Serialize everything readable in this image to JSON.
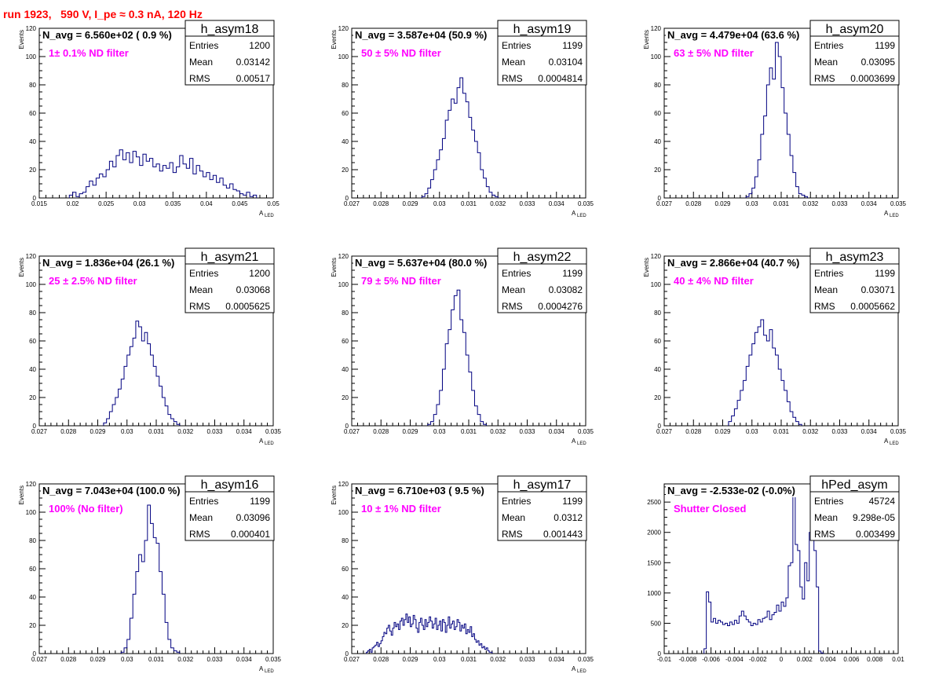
{
  "run_title": "run 1923,   590 V, I_pe ≈ 0.3 nA, 120 Hz",
  "stat_labels": {
    "entries": "Entries",
    "mean": "Mean",
    "rms": "RMS"
  },
  "chart_data": [
    {
      "type": "bar",
      "name": "h_asym18",
      "navg_text": "N_avg = 6.560e+02 ( 0.9 %)",
      "filter_text": "1± 0.1% ND filter",
      "entries": "1200",
      "mean": "0.03142",
      "rms": "0.00517",
      "ylabel": "Events",
      "xlabel": "A",
      "xlabel_sub": "LED",
      "xlim": [
        0.015,
        0.05
      ],
      "ylim": [
        0,
        120
      ],
      "xticks": [
        "0.015",
        "0.02",
        "0.025",
        "0.03",
        "0.035",
        "0.04",
        "0.045",
        "0.05"
      ],
      "yticks": [
        "0",
        "20",
        "40",
        "60",
        "80",
        "100",
        "120"
      ],
      "bins": {
        "start": 0.0195,
        "width": 0.0005,
        "values": [
          2,
          4,
          1,
          3,
          4,
          8,
          12,
          9,
          14,
          17,
          15,
          20,
          26,
          22,
          30,
          34,
          27,
          32,
          25,
          33,
          29,
          23,
          31,
          26,
          28,
          22,
          24,
          19,
          23,
          21,
          25,
          18,
          22,
          30,
          24,
          21,
          28,
          17,
          23,
          19,
          15,
          18,
          13,
          16,
          11,
          14,
          9,
          7,
          10,
          6,
          5,
          3,
          2,
          4,
          1,
          2
        ]
      }
    },
    {
      "type": "bar",
      "name": "h_asym19",
      "navg_text": "N_avg = 3.587e+04 (50.9 %)",
      "filter_text": "50 ± 5% ND filter",
      "entries": "1199",
      "mean": "0.03104",
      "rms": "0.0004814",
      "ylabel": "Events",
      "xlabel": "A",
      "xlabel_sub": "LED",
      "xlim": [
        0.027,
        0.035
      ],
      "ylim": [
        0,
        120
      ],
      "xticks": [
        "0.027",
        "0.028",
        "0.029",
        "0.03",
        "0.031",
        "0.032",
        "0.033",
        "0.034",
        "0.035"
      ],
      "yticks": [
        "0",
        "20",
        "40",
        "60",
        "80",
        "100",
        "120"
      ],
      "bins": {
        "start": 0.0294,
        "width": 0.0001,
        "values": [
          1,
          3,
          7,
          13,
          20,
          27,
          34,
          42,
          55,
          62,
          70,
          67,
          78,
          85,
          74,
          68,
          57,
          48,
          40,
          32,
          20,
          14,
          8,
          4,
          2,
          1
        ]
      }
    },
    {
      "type": "bar",
      "name": "h_asym20",
      "navg_text": "N_avg = 4.479e+04 (63.6 %)",
      "filter_text": "63 ± 5% ND filter",
      "entries": "1199",
      "mean": "0.03095",
      "rms": "0.0003699",
      "ylabel": "Events",
      "xlabel": "A",
      "xlabel_sub": "LED",
      "xlim": [
        0.027,
        0.035
      ],
      "ylim": [
        0,
        120
      ],
      "xticks": [
        "0.027",
        "0.028",
        "0.029",
        "0.03",
        "0.031",
        "0.032",
        "0.033",
        "0.034",
        "0.035"
      ],
      "yticks": [
        "0",
        "20",
        "40",
        "60",
        "80",
        "100",
        "120"
      ],
      "bins": {
        "start": 0.0298,
        "width": 0.0001,
        "values": [
          1,
          3,
          7,
          15,
          27,
          45,
          58,
          80,
          92,
          84,
          110,
          100,
          78,
          60,
          45,
          30,
          18,
          8,
          3,
          2,
          1
        ]
      }
    },
    {
      "type": "bar",
      "name": "h_asym21",
      "navg_text": "N_avg = 1.836e+04 (26.1 %)",
      "filter_text": "25 ± 2.5% ND filter",
      "entries": "1200",
      "mean": "0.03068",
      "rms": "0.0005625",
      "ylabel": "Events",
      "xlabel": "A",
      "xlabel_sub": "LED",
      "xlim": [
        0.027,
        0.035
      ],
      "ylim": [
        0,
        120
      ],
      "xticks": [
        "0.027",
        "0.028",
        "0.029",
        "0.03",
        "0.031",
        "0.032",
        "0.033",
        "0.034",
        "0.035"
      ],
      "yticks": [
        "0",
        "20",
        "40",
        "60",
        "80",
        "100",
        "120"
      ],
      "bins": {
        "start": 0.0292,
        "width": 0.0001,
        "values": [
          2,
          5,
          10,
          15,
          20,
          26,
          33,
          42,
          50,
          56,
          62,
          74,
          70,
          60,
          66,
          58,
          50,
          42,
          35,
          28,
          20,
          14,
          8,
          5,
          3,
          1
        ]
      }
    },
    {
      "type": "bar",
      "name": "h_asym22",
      "navg_text": "N_avg = 5.637e+04 (80.0 %)",
      "filter_text": "79 ± 5% ND filter",
      "entries": "1199",
      "mean": "0.03082",
      "rms": "0.0004276",
      "ylabel": "Events",
      "xlabel": "A",
      "xlabel_sub": "LED",
      "xlim": [
        0.027,
        0.035
      ],
      "ylim": [
        0,
        120
      ],
      "xticks": [
        "0.027",
        "0.028",
        "0.029",
        "0.03",
        "0.031",
        "0.032",
        "0.033",
        "0.034",
        "0.035"
      ],
      "yticks": [
        "0",
        "20",
        "40",
        "60",
        "80",
        "100",
        "120"
      ],
      "bins": {
        "start": 0.0296,
        "width": 0.0001,
        "values": [
          1,
          3,
          8,
          15,
          25,
          40,
          58,
          68,
          82,
          92,
          96,
          75,
          66,
          50,
          38,
          25,
          14,
          8,
          3,
          1
        ]
      }
    },
    {
      "type": "bar",
      "name": "h_asym23",
      "navg_text": "N_avg = 2.866e+04 (40.7 %)",
      "filter_text": "40 ± 4% ND filter",
      "entries": "1199",
      "mean": "0.03071",
      "rms": "0.0005662",
      "ylabel": "Events",
      "xlabel": "A",
      "xlabel_sub": "LED",
      "xlim": [
        0.027,
        0.035
      ],
      "ylim": [
        0,
        120
      ],
      "xticks": [
        "0.027",
        "0.028",
        "0.029",
        "0.03",
        "0.031",
        "0.032",
        "0.033",
        "0.034",
        "0.035"
      ],
      "yticks": [
        "0",
        "20",
        "40",
        "60",
        "80",
        "100",
        "120"
      ],
      "bins": {
        "start": 0.0292,
        "width": 0.0001,
        "values": [
          3,
          7,
          12,
          18,
          25,
          32,
          42,
          50,
          58,
          66,
          70,
          75,
          64,
          60,
          68,
          55,
          50,
          40,
          32,
          25,
          17,
          10,
          6,
          3,
          1
        ]
      }
    },
    {
      "type": "bar",
      "name": "h_asym16",
      "navg_text": "N_avg = 7.043e+04 (100.0 %)",
      "filter_text": "100% (No filter)",
      "entries": "1199",
      "mean": "0.03096",
      "rms": "0.000401",
      "ylabel": "Events",
      "xlabel": "A",
      "xlabel_sub": "LED",
      "xlim": [
        0.027,
        0.035
      ],
      "ylim": [
        0,
        120
      ],
      "xticks": [
        "0.027",
        "0.028",
        "0.029",
        "0.03",
        "0.031",
        "0.032",
        "0.033",
        "0.034",
        "0.035"
      ],
      "yticks": [
        "0",
        "20",
        "40",
        "60",
        "80",
        "100",
        "120"
      ],
      "bins": {
        "start": 0.0298,
        "width": 0.0001,
        "values": [
          1,
          4,
          10,
          25,
          42,
          58,
          70,
          65,
          80,
          105,
          92,
          82,
          78,
          58,
          42,
          22,
          10,
          4,
          2,
          1
        ]
      }
    },
    {
      "type": "bar",
      "name": "h_asym17",
      "navg_text": "N_avg = 6.710e+03 ( 9.5 %)",
      "filter_text": "10 ± 1% ND filter",
      "entries": "1199",
      "mean": "0.0312",
      "rms": "0.001443",
      "ylabel": "Events",
      "xlabel": "A",
      "xlabel_sub": "LED",
      "xlim": [
        0.027,
        0.035
      ],
      "ylim": [
        0,
        120
      ],
      "xticks": [
        "0.027",
        "0.028",
        "0.029",
        "0.03",
        "0.031",
        "0.032",
        "0.033",
        "0.034",
        "0.035"
      ],
      "yticks": [
        "0",
        "20",
        "40",
        "60",
        "80",
        "100",
        "120"
      ],
      "bins": {
        "start": 0.0275,
        "width": 5e-05,
        "values": [
          1,
          2,
          3,
          1,
          4,
          5,
          6,
          8,
          5,
          7,
          9,
          12,
          15,
          14,
          18,
          20,
          16,
          13,
          18,
          22,
          19,
          21,
          17,
          23,
          25,
          20,
          24,
          28,
          22,
          26,
          19,
          21,
          27,
          24,
          18,
          15,
          22,
          25,
          20,
          17,
          24,
          19,
          22,
          26,
          23,
          18,
          21,
          25,
          17,
          20,
          23,
          16,
          24,
          22,
          15,
          20,
          26,
          18,
          21,
          23,
          17,
          19,
          24,
          22,
          16,
          20,
          18,
          21,
          14,
          17,
          15,
          19,
          12,
          14,
          10,
          8,
          9,
          6,
          7,
          4,
          5,
          3,
          4,
          2,
          1,
          1
        ]
      }
    },
    {
      "type": "bar",
      "name": "hPed_asym",
      "navg_text": "N_avg = -2.533e-02 (-0.0%)",
      "filter_text": "Shutter Closed",
      "entries": "45724",
      "mean": "9.298e-05",
      "rms": "0.003499",
      "ylabel": "",
      "xlabel": "",
      "xlabel_sub": "",
      "xlim": [
        -0.01,
        0.01
      ],
      "ylim": [
        0,
        2800
      ],
      "xticks": [
        "-0.01",
        "-0.008",
        "-0.006",
        "-0.004",
        "-0.002",
        "0",
        "0.002",
        "0.004",
        "0.006",
        "0.008",
        "0.01"
      ],
      "yticks": [
        "0",
        "500",
        "1000",
        "1500",
        "2000",
        "2500"
      ],
      "bins": {
        "start": -0.0066,
        "width": 0.0002,
        "values": [
          80,
          1020,
          850,
          520,
          580,
          500,
          550,
          520,
          480,
          500,
          460,
          520,
          480,
          550,
          500,
          620,
          700,
          620,
          560,
          520,
          460,
          500,
          480,
          560,
          520,
          580,
          600,
          700,
          560,
          640,
          680,
          800,
          700,
          850,
          780,
          920,
          1450,
          1500,
          2600,
          1800,
          1700,
          1100,
          900,
          1500,
          1200,
          2000,
          2200,
          1700,
          1100,
          40,
          10
        ]
      }
    }
  ]
}
